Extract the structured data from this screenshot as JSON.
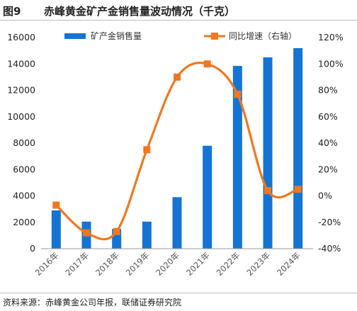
{
  "header": {
    "figure_label": "图9",
    "title": "赤峰黄金矿产金销售量波动情况（千克）"
  },
  "footer": {
    "source": "资料来源：赤峰黄金公司年报，联储证券研究院"
  },
  "chart_data": {
    "type": "bar",
    "categories": [
      "2016年",
      "2017年",
      "2018年",
      "2019年",
      "2020年",
      "2021年",
      "2022年",
      "2023年",
      "2024年"
    ],
    "series": [
      {
        "name": "矿产金销售量",
        "kind": "bar",
        "axis": "left",
        "color": "#1474d4",
        "values": [
          2900,
          2050,
          1500,
          2050,
          3900,
          7800,
          13850,
          14500,
          15200
        ]
      },
      {
        "name": "同比增速（右轴）",
        "kind": "line",
        "axis": "right",
        "color": "#f07820",
        "values": [
          -7,
          -28,
          -27,
          35,
          90,
          100,
          77,
          4,
          5
        ]
      }
    ],
    "left_axis": {
      "min": 0,
      "max": 16000,
      "ticks": [
        0,
        2000,
        4000,
        6000,
        8000,
        10000,
        12000,
        14000,
        16000
      ],
      "tick_labels": [
        "0",
        "2000",
        "4000",
        "6000",
        "8000",
        "10000",
        "12000",
        "14000",
        "16000"
      ]
    },
    "right_axis": {
      "min": -40,
      "max": 120,
      "ticks": [
        -40,
        -20,
        0,
        20,
        40,
        60,
        80,
        100,
        120
      ],
      "tick_labels": [
        "-40%",
        "-20%",
        "0%",
        "20%",
        "40%",
        "60%",
        "80%",
        "100%",
        "120%"
      ]
    },
    "grid": false,
    "legend": "top"
  }
}
